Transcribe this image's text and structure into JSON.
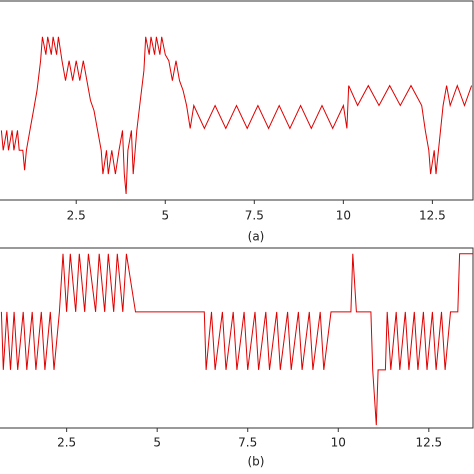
{
  "chart_data": [
    {
      "type": "line",
      "caption": "(a)",
      "x": [
        0.4,
        0.45,
        0.55,
        0.6,
        0.7,
        0.75,
        0.85,
        0.9,
        1.0,
        1.05,
        1.1,
        1.2,
        1.3,
        1.4,
        1.5,
        1.55,
        1.65,
        1.7,
        1.8,
        1.85,
        1.95,
        2.0,
        2.1,
        2.2,
        2.3,
        2.4,
        2.5,
        2.6,
        2.7,
        2.8,
        2.9,
        3.0,
        3.1,
        3.2,
        3.25,
        3.35,
        3.4,
        3.5,
        3.6,
        3.7,
        3.8,
        3.85,
        3.9,
        3.95,
        4.05,
        4.1,
        4.2,
        4.3,
        4.4,
        4.45,
        4.55,
        4.6,
        4.7,
        4.75,
        4.85,
        4.9,
        5.0,
        5.1,
        5.2,
        5.3,
        5.4,
        5.5,
        5.6,
        5.7,
        5.8,
        6.1,
        6.4,
        6.7,
        7.0,
        7.3,
        7.6,
        7.9,
        8.2,
        8.5,
        8.8,
        9.1,
        9.4,
        9.7,
        10.0,
        10.1,
        10.15,
        10.4,
        10.7,
        11.0,
        11.3,
        11.6,
        11.9,
        12.2,
        12.3,
        12.4,
        12.45,
        12.55,
        12.6,
        12.7,
        12.8,
        12.9,
        13.0,
        13.2,
        13.4,
        13.6
      ],
      "series": [
        {
          "color": "#e00000",
          "values": [
            3.5,
            2.5,
            3.5,
            2.5,
            3.5,
            2.5,
            3.5,
            2.5,
            2.5,
            1.5,
            2.5,
            3.5,
            4.5,
            5.5,
            7.0,
            8.2,
            7.3,
            8.2,
            7.3,
            8.2,
            7.3,
            8.2,
            7.0,
            6.0,
            7.0,
            6.0,
            7.0,
            6.0,
            7.0,
            6.0,
            5.0,
            4.5,
            3.5,
            2.5,
            1.3,
            2.5,
            1.3,
            2.5,
            1.3,
            2.5,
            3.5,
            1.3,
            0.3,
            2.5,
            3.5,
            1.3,
            3.5,
            5.0,
            6.5,
            8.2,
            7.3,
            8.2,
            7.3,
            8.2,
            7.3,
            8.2,
            7.3,
            7.0,
            6.0,
            7.0,
            6.0,
            5.5,
            4.75,
            3.6,
            4.75,
            3.6,
            4.75,
            3.6,
            4.75,
            3.6,
            4.75,
            3.6,
            4.75,
            3.6,
            4.75,
            3.6,
            4.75,
            3.6,
            4.75,
            3.6,
            5.75,
            4.75,
            5.75,
            4.75,
            5.75,
            4.75,
            5.75,
            4.75,
            3.5,
            2.5,
            1.3,
            2.5,
            1.3,
            3.0,
            4.75,
            5.75,
            4.75,
            5.75,
            4.75,
            5.75
          ]
        }
      ],
      "xlim": [
        0.36,
        13.64
      ],
      "ylim": [
        0,
        10
      ],
      "xticks": [
        2.5,
        5,
        7.5,
        10,
        12.5
      ]
    },
    {
      "type": "line",
      "caption": "(b)",
      "x": [
        0.7,
        0.75,
        0.85,
        0.95,
        1.05,
        1.15,
        1.3,
        1.4,
        1.55,
        1.65,
        1.8,
        1.9,
        2.05,
        2.15,
        2.3,
        2.4,
        2.5,
        2.6,
        2.75,
        2.85,
        3.0,
        3.1,
        3.3,
        3.4,
        3.55,
        3.65,
        3.8,
        3.9,
        4.05,
        4.15,
        4.4,
        6.3,
        6.35,
        6.5,
        6.6,
        6.8,
        6.9,
        7.1,
        7.2,
        7.4,
        7.5,
        7.7,
        7.8,
        8.0,
        8.1,
        8.3,
        8.4,
        8.6,
        8.7,
        8.9,
        9.0,
        9.2,
        9.3,
        9.5,
        9.6,
        9.8,
        10.35,
        10.4,
        10.5,
        10.9,
        10.95,
        11.05,
        11.1,
        11.3,
        11.35,
        11.45,
        11.6,
        11.7,
        11.85,
        11.95,
        12.1,
        12.2,
        12.35,
        12.45,
        12.6,
        12.7,
        12.85,
        12.95,
        13.1,
        13.3,
        13.35,
        13.72
      ],
      "series": [
        {
          "color": "#e00000",
          "values": [
            2,
            1,
            2,
            1,
            2,
            1,
            2,
            1,
            2,
            1,
            2,
            1,
            2,
            1,
            2,
            3,
            2,
            3,
            2,
            3,
            2,
            3,
            2,
            3,
            2,
            3,
            2,
            3,
            2,
            3,
            2,
            2,
            1,
            2,
            1,
            2,
            1,
            2,
            1,
            2,
            1,
            2,
            1,
            2,
            1,
            2,
            1,
            2,
            1,
            2,
            1,
            2,
            1,
            2,
            1,
            2,
            2,
            3,
            2,
            2,
            1,
            0.05,
            1,
            1,
            2,
            1,
            2,
            1,
            2,
            1,
            2,
            1,
            2,
            1,
            2,
            1,
            2,
            1,
            2,
            2,
            3,
            3
          ]
        }
      ],
      "xlim": [
        0.66,
        13.72
      ],
      "ylim": [
        0,
        3.1
      ],
      "xticks": [
        2.5,
        5,
        7.5,
        10,
        12.5
      ]
    }
  ]
}
